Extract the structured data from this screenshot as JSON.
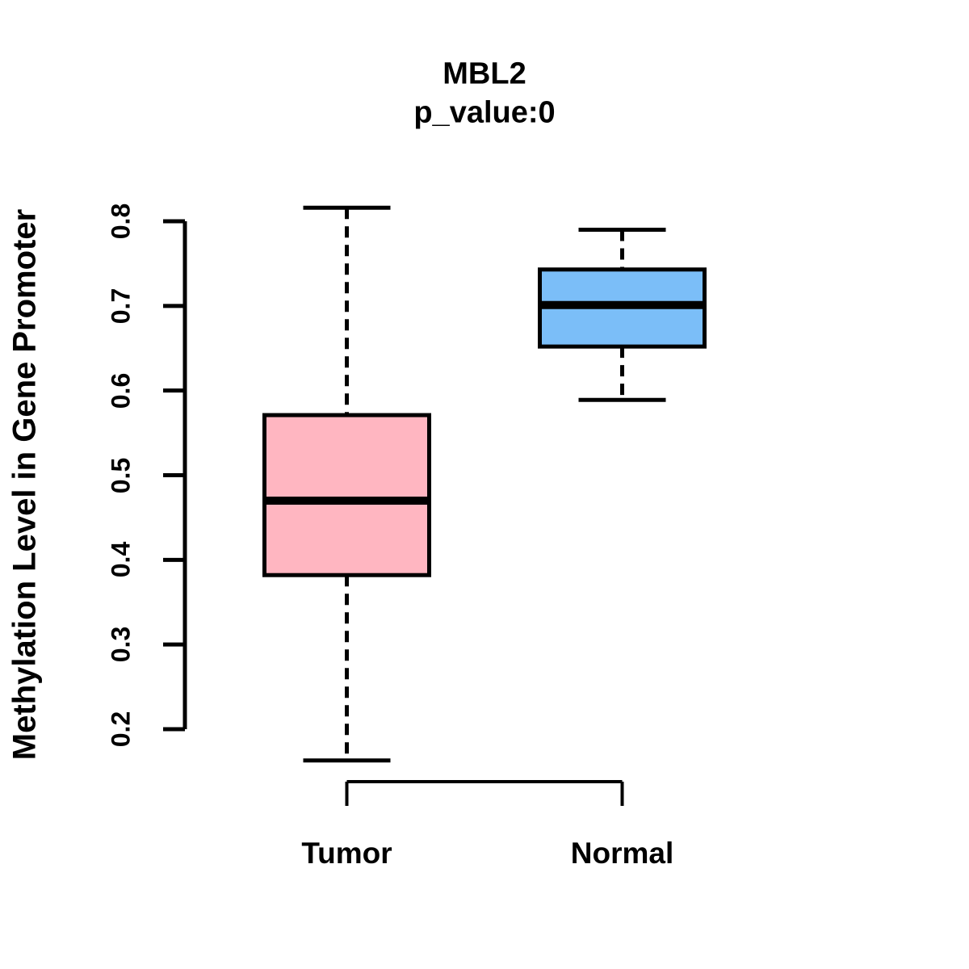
{
  "chart_data": {
    "type": "boxplot",
    "title": "MBL2",
    "subtitle": "p_value:0",
    "ylabel": "Methylation Level in Gene Promoter",
    "xlabel": "",
    "ylim": [
      0.2,
      0.8
    ],
    "yticks": [
      "0.2",
      "0.3",
      "0.4",
      "0.5",
      "0.6",
      "0.7",
      "0.8"
    ],
    "grid": false,
    "legend": "none",
    "axis_color": "#000000",
    "box_border_color": "#000000",
    "median_color": "#000000",
    "groups": [
      {
        "label": "Tumor",
        "fill": "#FFB6C1",
        "whisker_low": 0.163,
        "q1": 0.382,
        "median": 0.47,
        "q3": 0.571,
        "whisker_high": 0.816
      },
      {
        "label": "Normal",
        "fill": "#7BBEF8",
        "whisker_low": 0.589,
        "q1": 0.652,
        "median": 0.701,
        "q3": 0.743,
        "whisker_high": 0.79
      }
    ]
  }
}
